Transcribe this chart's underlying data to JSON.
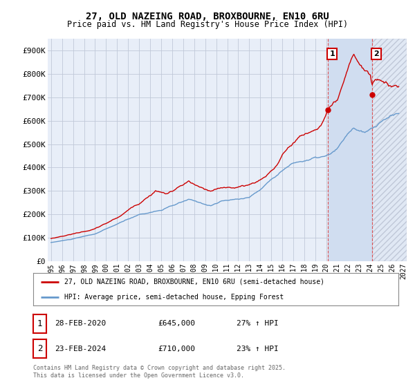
{
  "title_line1": "27, OLD NAZEING ROAD, BROXBOURNE, EN10 6RU",
  "title_line2": "Price paid vs. HM Land Registry's House Price Index (HPI)",
  "ylabel_ticks": [
    "£0",
    "£100K",
    "£200K",
    "£300K",
    "£400K",
    "£500K",
    "£600K",
    "£700K",
    "£800K",
    "£900K"
  ],
  "ytick_values": [
    0,
    100000,
    200000,
    300000,
    400000,
    500000,
    600000,
    700000,
    800000,
    900000
  ],
  "ylim": [
    0,
    950000
  ],
  "xlim_start": 1994.7,
  "xlim_end": 2027.3,
  "sale1_date": "28-FEB-2020",
  "sale1_price": 645000,
  "sale1_hpi_text": "27% ↑ HPI",
  "sale2_date": "23-FEB-2024",
  "sale2_price": 710000,
  "sale2_hpi_text": "23% ↑ HPI",
  "sale1_x": 2020.14,
  "sale2_x": 2024.14,
  "line1_color": "#cc0000",
  "line2_color": "#6699cc",
  "vline_color": "#dd4444",
  "chart_bg": "#e8eef8",
  "shaded_bg": "#d0ddf0",
  "hatch_bg": "#e0e8f4",
  "background_color": "#ffffff",
  "grid_color": "#c0c8d8",
  "legend1_label": "27, OLD NAZEING ROAD, BROXBOURNE, EN10 6RU (semi-detached house)",
  "legend2_label": "HPI: Average price, semi-detached house, Epping Forest",
  "footer_text": "Contains HM Land Registry data © Crown copyright and database right 2025.\nThis data is licensed under the Open Government Licence v3.0.",
  "title_fontsize": 10,
  "axis_fontsize": 8,
  "sale1_y": 645000,
  "sale2_y": 710000
}
